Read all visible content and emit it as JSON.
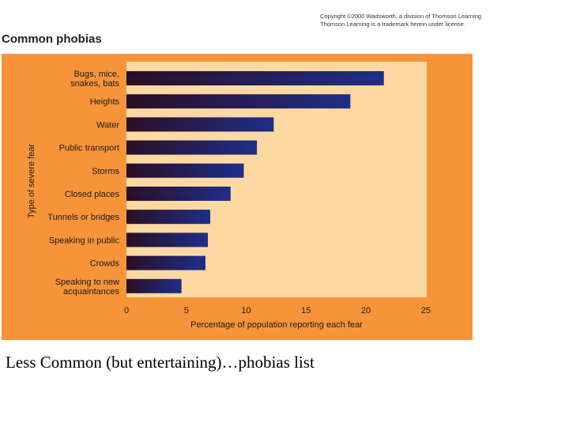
{
  "copyright": {
    "line1": "Copyright ©2000 Wadsworth, a division of Thomson Learning",
    "line2": "Thomson Learning is a trademark herein under license."
  },
  "caption": "Less Common (but entertaining)…phobias list",
  "colors": {
    "frame": "#f7943a",
    "plot_bg": "#fcd9a2",
    "bar_dark": "#2a0f24",
    "bar_light": "#1f2e8a",
    "text": "#1a1a1a"
  },
  "chart_data": {
    "type": "bar",
    "orientation": "horizontal",
    "title": "Common phobias",
    "ylabel": "Type of severe fear",
    "xlabel": "Percentage of population reporting each fear",
    "xlim": [
      0,
      25
    ],
    "xticks": [
      0,
      5,
      10,
      15,
      20,
      25
    ],
    "grid": false,
    "categories": [
      [
        "Bugs, mice,",
        "snakes, bats"
      ],
      [
        "Heights"
      ],
      [
        "Water"
      ],
      [
        "Public transport"
      ],
      [
        "Storms"
      ],
      [
        "Closed places"
      ],
      [
        "Tunnels or bridges"
      ],
      [
        "Speaking in public"
      ],
      [
        "Crowds"
      ],
      [
        "Speaking to new",
        "acquaintances"
      ]
    ],
    "values": [
      21.5,
      18.7,
      12.3,
      10.9,
      9.8,
      8.7,
      7.0,
      6.8,
      6.6,
      4.6
    ]
  }
}
